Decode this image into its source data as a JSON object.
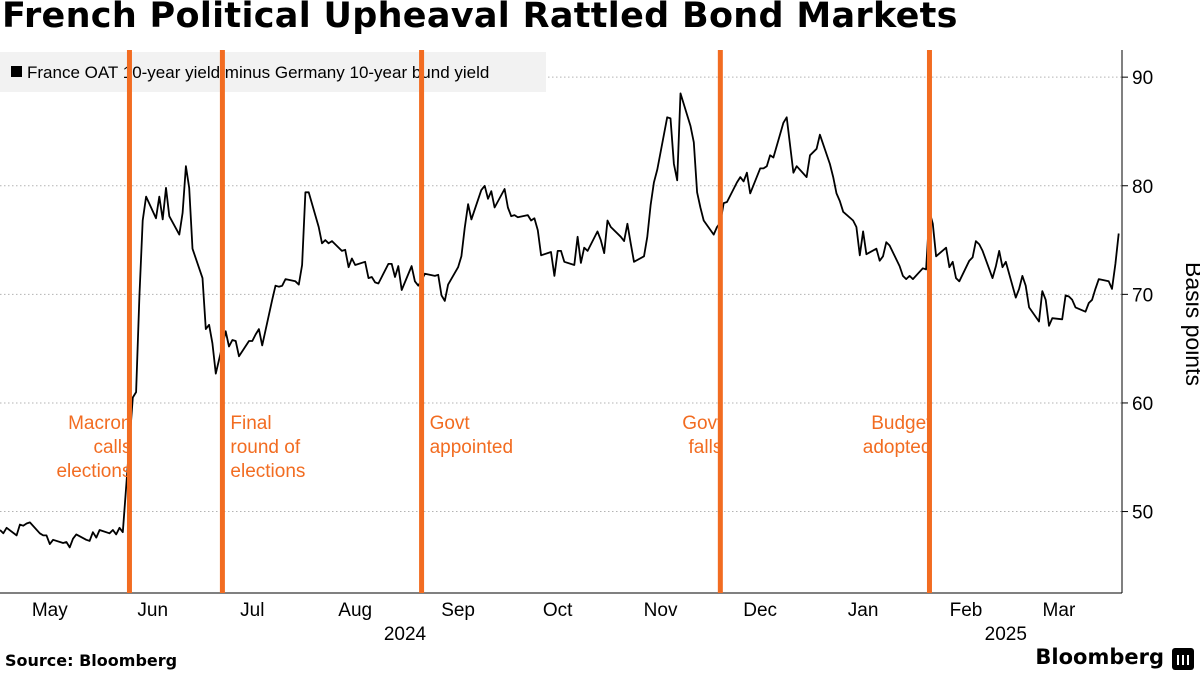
{
  "title": "French Political Upheaval Rattled Bond Markets",
  "source": "Source: Bloomberg",
  "brand": "Bloomberg",
  "colors": {
    "line": "#000000",
    "event": "#f26c21",
    "grid": "#b3b3b3"
  },
  "chart_data": {
    "type": "line",
    "title": "French Political Upheaval Rattled Bond Markets",
    "ylabel": "Basis points",
    "ylim": [
      42.5,
      92.5
    ],
    "yticks": [
      50,
      60,
      70,
      80,
      90
    ],
    "xlim": [
      "2024-05-01",
      "2025-04-04"
    ],
    "x_ticks": [
      {
        "label": "May",
        "x": "2024-05-16"
      },
      {
        "label": "Jun",
        "x": "2024-06-16"
      },
      {
        "label": "Jul",
        "x": "2024-07-16"
      },
      {
        "label": "Aug",
        "x": "2024-08-16"
      },
      {
        "label": "Sep",
        "x": "2024-09-16"
      },
      {
        "label": "Oct",
        "x": "2024-10-16"
      },
      {
        "label": "Nov",
        "x": "2024-11-16"
      },
      {
        "label": "Dec",
        "x": "2024-12-16"
      },
      {
        "label": "Jan",
        "x": "2025-01-16"
      },
      {
        "label": "Feb",
        "x": "2025-02-16"
      },
      {
        "label": "Mar",
        "x": "2025-03-16"
      }
    ],
    "year_labels": [
      {
        "label": "2024",
        "x": "2024-08-31"
      },
      {
        "label": "2025",
        "x": "2025-02-28"
      }
    ],
    "legend": "top-left",
    "grid": true,
    "series": [
      {
        "name": "France OAT 10-year yield minus Germany 10-year bund yield",
        "points": [
          [
            "2024-05-01",
            48.3
          ],
          [
            "2024-05-02",
            48.0
          ],
          [
            "2024-05-03",
            48.5
          ],
          [
            "2024-05-06",
            47.8
          ],
          [
            "2024-05-07",
            48.8
          ],
          [
            "2024-05-08",
            48.7
          ],
          [
            "2024-05-09",
            48.9
          ],
          [
            "2024-05-10",
            49.0
          ],
          [
            "2024-05-13",
            48.0
          ],
          [
            "2024-05-14",
            47.8
          ],
          [
            "2024-05-15",
            47.8
          ],
          [
            "2024-05-16",
            47.0
          ],
          [
            "2024-05-17",
            47.4
          ],
          [
            "2024-05-20",
            47.1
          ],
          [
            "2024-05-21",
            47.2
          ],
          [
            "2024-05-22",
            46.7
          ],
          [
            "2024-05-23",
            47.5
          ],
          [
            "2024-05-24",
            47.9
          ],
          [
            "2024-05-27",
            47.4
          ],
          [
            "2024-05-28",
            47.3
          ],
          [
            "2024-05-29",
            48.1
          ],
          [
            "2024-05-30",
            47.6
          ],
          [
            "2024-05-31",
            48.3
          ],
          [
            "2024-06-03",
            48.0
          ],
          [
            "2024-06-04",
            48.3
          ],
          [
            "2024-06-05",
            47.9
          ],
          [
            "2024-06-06",
            48.5
          ],
          [
            "2024-06-07",
            48.1
          ],
          [
            "2024-06-10",
            60.5
          ],
          [
            "2024-06-11",
            61.0
          ],
          [
            "2024-06-12",
            69.8
          ],
          [
            "2024-06-13",
            76.8
          ],
          [
            "2024-06-14",
            79.0
          ],
          [
            "2024-06-17",
            77.0
          ],
          [
            "2024-06-18",
            79.0
          ],
          [
            "2024-06-19",
            76.9
          ],
          [
            "2024-06-20",
            79.8
          ],
          [
            "2024-06-21",
            77.2
          ],
          [
            "2024-06-24",
            75.5
          ],
          [
            "2024-06-25",
            77.5
          ],
          [
            "2024-06-26",
            81.8
          ],
          [
            "2024-06-27",
            79.8
          ],
          [
            "2024-06-28",
            74.2
          ],
          [
            "2024-07-01",
            71.5
          ],
          [
            "2024-07-02",
            66.8
          ],
          [
            "2024-07-03",
            67.2
          ],
          [
            "2024-07-04",
            65.5
          ],
          [
            "2024-07-05",
            62.7
          ],
          [
            "2024-07-08",
            66.6
          ],
          [
            "2024-07-09",
            65.2
          ],
          [
            "2024-07-10",
            65.8
          ],
          [
            "2024-07-11",
            65.7
          ],
          [
            "2024-07-12",
            64.3
          ],
          [
            "2024-07-15",
            65.7
          ],
          [
            "2024-07-16",
            65.7
          ],
          [
            "2024-07-17",
            66.3
          ],
          [
            "2024-07-18",
            66.8
          ],
          [
            "2024-07-19",
            65.3
          ],
          [
            "2024-07-22",
            69.5
          ],
          [
            "2024-07-23",
            70.8
          ],
          [
            "2024-07-24",
            70.7
          ],
          [
            "2024-07-25",
            70.8
          ],
          [
            "2024-07-26",
            71.4
          ],
          [
            "2024-07-29",
            71.2
          ],
          [
            "2024-07-30",
            70.9
          ],
          [
            "2024-07-31",
            72.7
          ],
          [
            "2024-08-01",
            79.4
          ],
          [
            "2024-08-02",
            79.4
          ],
          [
            "2024-08-05",
            76.2
          ],
          [
            "2024-08-06",
            74.7
          ],
          [
            "2024-08-07",
            75.0
          ],
          [
            "2024-08-08",
            74.7
          ],
          [
            "2024-08-09",
            74.9
          ],
          [
            "2024-08-12",
            74.0
          ],
          [
            "2024-08-13",
            74.1
          ],
          [
            "2024-08-14",
            72.5
          ],
          [
            "2024-08-15",
            73.3
          ],
          [
            "2024-08-16",
            72.7
          ],
          [
            "2024-08-19",
            73.0
          ],
          [
            "2024-08-20",
            71.5
          ],
          [
            "2024-08-21",
            71.6
          ],
          [
            "2024-08-22",
            71.1
          ],
          [
            "2024-08-23",
            71.0
          ],
          [
            "2024-08-26",
            72.8
          ],
          [
            "2024-08-27",
            72.8
          ],
          [
            "2024-08-28",
            71.6
          ],
          [
            "2024-08-29",
            72.6
          ],
          [
            "2024-08-30",
            70.4
          ],
          [
            "2024-09-02",
            72.6
          ],
          [
            "2024-09-03",
            71.2
          ],
          [
            "2024-09-04",
            70.8
          ],
          [
            "2024-09-05",
            71.3
          ],
          [
            "2024-09-06",
            71.9
          ],
          [
            "2024-09-09",
            71.7
          ],
          [
            "2024-09-10",
            71.8
          ],
          [
            "2024-09-11",
            69.9
          ],
          [
            "2024-09-12",
            69.4
          ],
          [
            "2024-09-13",
            70.9
          ],
          [
            "2024-09-16",
            72.5
          ],
          [
            "2024-09-17",
            73.5
          ],
          [
            "2024-09-18",
            76.1
          ],
          [
            "2024-09-19",
            78.3
          ],
          [
            "2024-09-20",
            76.9
          ],
          [
            "2024-09-23",
            79.6
          ],
          [
            "2024-09-24",
            80.0
          ],
          [
            "2024-09-25",
            78.8
          ],
          [
            "2024-09-26",
            79.5
          ],
          [
            "2024-09-27",
            78.0
          ],
          [
            "2024-09-30",
            79.7
          ],
          [
            "2024-10-01",
            78.0
          ],
          [
            "2024-10-02",
            77.2
          ],
          [
            "2024-10-03",
            77.3
          ],
          [
            "2024-10-04",
            77.1
          ],
          [
            "2024-10-07",
            77.3
          ],
          [
            "2024-10-08",
            76.8
          ],
          [
            "2024-10-09",
            77.0
          ],
          [
            "2024-10-10",
            75.9
          ],
          [
            "2024-10-11",
            73.6
          ],
          [
            "2024-10-14",
            73.9
          ],
          [
            "2024-10-15",
            71.7
          ],
          [
            "2024-10-16",
            74.0
          ],
          [
            "2024-10-17",
            74.0
          ],
          [
            "2024-10-18",
            73.0
          ],
          [
            "2024-10-21",
            72.7
          ],
          [
            "2024-10-22",
            75.3
          ],
          [
            "2024-10-23",
            72.9
          ],
          [
            "2024-10-24",
            74.3
          ],
          [
            "2024-10-25",
            74.0
          ],
          [
            "2024-10-28",
            75.8
          ],
          [
            "2024-10-29",
            75.0
          ],
          [
            "2024-10-30",
            73.8
          ],
          [
            "2024-10-31",
            76.8
          ],
          [
            "2024-11-01",
            76.2
          ],
          [
            "2024-11-04",
            75.3
          ],
          [
            "2024-11-05",
            74.9
          ],
          [
            "2024-11-06",
            76.5
          ],
          [
            "2024-11-07",
            74.7
          ],
          [
            "2024-11-08",
            73.0
          ],
          [
            "2024-11-11",
            73.5
          ],
          [
            "2024-11-12",
            75.3
          ],
          [
            "2024-11-13",
            78.2
          ],
          [
            "2024-11-14",
            80.3
          ],
          [
            "2024-11-15",
            81.5
          ],
          [
            "2024-11-18",
            86.3
          ],
          [
            "2024-11-19",
            86.2
          ],
          [
            "2024-11-20",
            82.0
          ],
          [
            "2024-11-21",
            80.5
          ],
          [
            "2024-11-22",
            88.5
          ],
          [
            "2024-11-25",
            85.5
          ],
          [
            "2024-11-26",
            84.0
          ],
          [
            "2024-11-27",
            79.4
          ],
          [
            "2024-11-28",
            78.0
          ],
          [
            "2024-11-29",
            76.8
          ],
          [
            "2024-12-02",
            75.5
          ],
          [
            "2024-12-03",
            76.2
          ],
          [
            "2024-12-04",
            76.6
          ],
          [
            "2024-12-05",
            78.4
          ],
          [
            "2024-12-06",
            78.5
          ],
          [
            "2024-12-09",
            80.3
          ],
          [
            "2024-12-10",
            80.8
          ],
          [
            "2024-12-11",
            80.4
          ],
          [
            "2024-12-12",
            81.2
          ],
          [
            "2024-12-13",
            79.3
          ],
          [
            "2024-12-16",
            81.6
          ],
          [
            "2024-12-17",
            81.6
          ],
          [
            "2024-12-18",
            81.8
          ],
          [
            "2024-12-19",
            82.8
          ],
          [
            "2024-12-20",
            82.6
          ],
          [
            "2024-12-23",
            85.8
          ],
          [
            "2024-12-24",
            86.3
          ],
          [
            "2024-12-26",
            81.2
          ],
          [
            "2024-12-27",
            81.8
          ],
          [
            "2024-12-30",
            80.8
          ],
          [
            "2024-12-31",
            82.8
          ],
          [
            "2025-01-02",
            83.4
          ],
          [
            "2025-01-03",
            84.7
          ],
          [
            "2025-01-06",
            82.0
          ],
          [
            "2025-01-07",
            80.8
          ],
          [
            "2025-01-08",
            79.3
          ],
          [
            "2025-01-09",
            78.6
          ],
          [
            "2025-01-10",
            77.6
          ],
          [
            "2025-01-13",
            76.8
          ],
          [
            "2025-01-14",
            76.2
          ],
          [
            "2025-01-15",
            73.6
          ],
          [
            "2025-01-16",
            75.8
          ],
          [
            "2025-01-17",
            73.7
          ],
          [
            "2025-01-20",
            74.2
          ],
          [
            "2025-01-21",
            73.1
          ],
          [
            "2025-01-22",
            73.5
          ],
          [
            "2025-01-23",
            74.8
          ],
          [
            "2025-01-24",
            74.5
          ],
          [
            "2025-01-27",
            72.6
          ],
          [
            "2025-01-28",
            71.7
          ],
          [
            "2025-01-29",
            71.4
          ],
          [
            "2025-01-30",
            71.7
          ],
          [
            "2025-01-31",
            71.4
          ],
          [
            "2025-02-03",
            72.4
          ],
          [
            "2025-02-04",
            72.3
          ],
          [
            "2025-02-05",
            77.6
          ],
          [
            "2025-02-06",
            76.5
          ],
          [
            "2025-02-07",
            73.5
          ],
          [
            "2025-02-10",
            74.3
          ],
          [
            "2025-02-11",
            72.5
          ],
          [
            "2025-02-12",
            73.0
          ],
          [
            "2025-02-13",
            71.5
          ],
          [
            "2025-02-14",
            71.2
          ],
          [
            "2025-02-17",
            73.1
          ],
          [
            "2025-02-18",
            73.4
          ],
          [
            "2025-02-19",
            74.9
          ],
          [
            "2025-02-20",
            74.6
          ],
          [
            "2025-02-21",
            74.0
          ],
          [
            "2025-02-24",
            71.5
          ],
          [
            "2025-02-25",
            72.6
          ],
          [
            "2025-02-26",
            74.0
          ],
          [
            "2025-02-27",
            72.5
          ],
          [
            "2025-02-28",
            73.0
          ],
          [
            "2025-03-03",
            69.7
          ],
          [
            "2025-03-04",
            70.5
          ],
          [
            "2025-03-05",
            71.7
          ],
          [
            "2025-03-06",
            70.8
          ],
          [
            "2025-03-07",
            68.8
          ],
          [
            "2025-03-10",
            67.5
          ],
          [
            "2025-03-11",
            70.3
          ],
          [
            "2025-03-12",
            69.5
          ],
          [
            "2025-03-13",
            67.1
          ],
          [
            "2025-03-14",
            67.8
          ],
          [
            "2025-03-17",
            67.7
          ],
          [
            "2025-03-18",
            69.9
          ],
          [
            "2025-03-19",
            69.8
          ],
          [
            "2025-03-20",
            69.5
          ],
          [
            "2025-03-21",
            68.8
          ],
          [
            "2025-03-24",
            68.4
          ],
          [
            "2025-03-25",
            69.2
          ],
          [
            "2025-03-26",
            69.5
          ],
          [
            "2025-03-27",
            70.5
          ],
          [
            "2025-03-28",
            71.4
          ],
          [
            "2025-03-31",
            71.2
          ],
          [
            "2025-04-01",
            70.5
          ],
          [
            "2025-04-02",
            72.8
          ],
          [
            "2025-04-03",
            75.6
          ]
        ]
      }
    ],
    "events": [
      {
        "date": "2024-06-09",
        "label": [
          "Macron",
          "calls",
          "elections"
        ],
        "align": "end"
      },
      {
        "date": "2024-07-07",
        "label": [
          "Final",
          "round of",
          "elections"
        ],
        "align": "start"
      },
      {
        "date": "2024-09-05",
        "label": [
          "Govt",
          "appointed"
        ],
        "align": "start"
      },
      {
        "date": "2024-12-04",
        "label": [
          "Govt",
          "falls"
        ],
        "align": "end"
      },
      {
        "date": "2025-02-05",
        "label": [
          "Budget",
          "adopted"
        ],
        "align": "end"
      }
    ]
  }
}
